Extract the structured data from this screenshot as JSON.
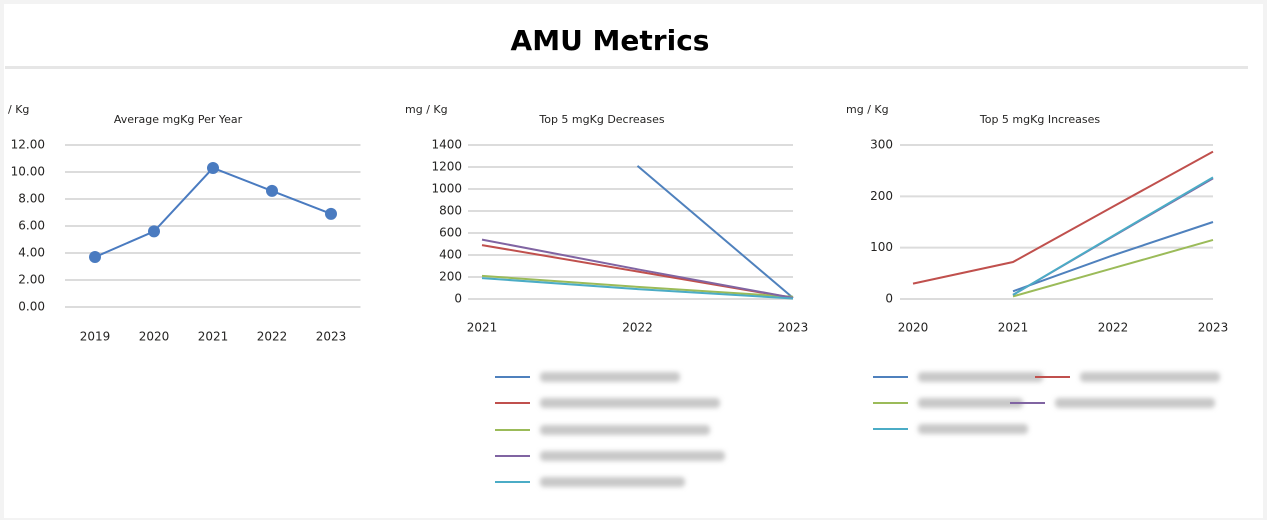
{
  "header": {
    "title": "AMU Metrics"
  },
  "chart_data": [
    {
      "type": "line",
      "title": "Average mgKg Per Year",
      "y_label": "/ Kg",
      "markers": true,
      "categories": [
        "2019",
        "2020",
        "2021",
        "2022",
        "2023"
      ],
      "series": [
        {
          "color": "#4a7bc0",
          "values": [
            3.7,
            5.6,
            10.3,
            8.6,
            6.9
          ]
        }
      ],
      "ylim": [
        0,
        12
      ],
      "yticks": [
        {
          "value": 0,
          "label": "0.00"
        },
        {
          "value": 2,
          "label": "2.00"
        },
        {
          "value": 4,
          "label": "4.00"
        },
        {
          "value": 6,
          "label": "6.00"
        },
        {
          "value": 8,
          "label": "8.00"
        },
        {
          "value": 10,
          "label": "10.00"
        },
        {
          "value": 12,
          "label": "12.00"
        }
      ],
      "grid": true
    },
    {
      "type": "line",
      "title": "Top 5 mgKg Decreases",
      "y_label": "mg / Kg",
      "markers": false,
      "categories": [
        "2021",
        "2022",
        "2023"
      ],
      "series": [
        {
          "color": "#4f81bd",
          "values": [
            null,
            1210,
            10
          ]
        },
        {
          "color": "#c0504d",
          "values": [
            490,
            250,
            10
          ]
        },
        {
          "color": "#9bbb59",
          "values": [
            210,
            110,
            20
          ]
        },
        {
          "color": "#8064a2",
          "values": [
            540,
            270,
            10
          ]
        },
        {
          "color": "#4bacc6",
          "values": [
            190,
            90,
            5
          ]
        }
      ],
      "ylim": [
        0,
        1400
      ],
      "yticks": [
        0,
        200,
        400,
        600,
        800,
        1000,
        1200,
        1400
      ],
      "grid": true
    },
    {
      "type": "line",
      "title": "Top 5 mgKg Increases",
      "y_label": "mg / Kg",
      "markers": false,
      "categories": [
        "2020",
        "2021",
        "2022",
        "2023"
      ],
      "series": [
        {
          "color": "#4f81bd",
          "values": [
            null,
            15,
            85,
            150
          ]
        },
        {
          "color": "#c0504d",
          "values": [
            30,
            72,
            180,
            287
          ]
        },
        {
          "color": "#9bbb59",
          "values": [
            null,
            5,
            60,
            115
          ]
        },
        {
          "color": "#8064a2",
          "values": [
            null,
            8,
            122,
            235
          ]
        },
        {
          "color": "#4bacc6",
          "values": [
            null,
            8,
            123,
            237
          ]
        }
      ],
      "ylim": [
        0,
        300
      ],
      "yticks": [
        0,
        100,
        200,
        300
      ],
      "grid": true
    }
  ]
}
